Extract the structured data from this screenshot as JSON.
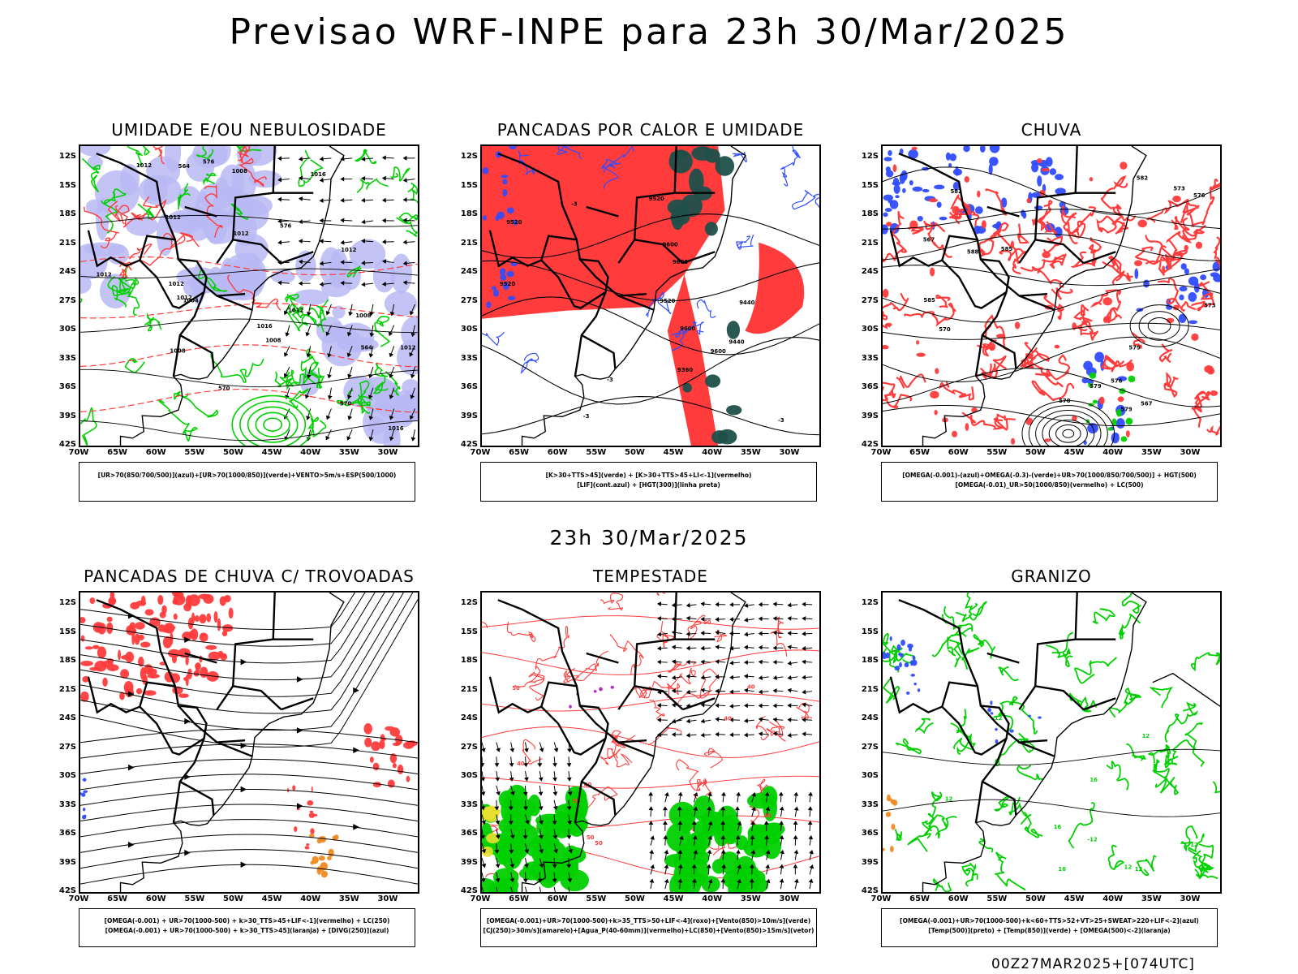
{
  "title": "Previsao WRF-INPE  para 23h 30/Mar/2025",
  "middle_title": "23h 30/Mar/2025",
  "footer": "00Z27MAR2025+[074UTC]",
  "lat_ticks": [
    "12S",
    "15S",
    "18S",
    "21S",
    "24S",
    "27S",
    "30S",
    "33S",
    "36S",
    "39S",
    "42S"
  ],
  "lon_ticks": [
    "70W",
    "65W",
    "60W",
    "55W",
    "50W",
    "45W",
    "40W",
    "35W",
    "30W"
  ],
  "colors": {
    "red": "#ff3b3b",
    "green": "#00d000",
    "blue": "#2f4cff",
    "lavender": "#b8b8f4",
    "darkteal": "#1f4f4a",
    "orange": "#f08a20",
    "yellow": "#e8e030",
    "purple": "#b020c0",
    "black": "#000000"
  },
  "panels": [
    {
      "id": "p1",
      "title": "UMIDADE E/OU NEBULOSIDADE",
      "legend": [
        "[UR>70(850/700/500)](azul)+[UR>70(1000/850)](verde)+VENTO>5m/s+ESP(500/1000)"
      ],
      "contour_labels": [
        "1012",
        "1012",
        "1012",
        "1016",
        "1012",
        "1008",
        "1004",
        "1016",
        "1012",
        "1008",
        "1012",
        "1012",
        "1012",
        "1016",
        "1008",
        "1012",
        "1008",
        "570",
        "576",
        "576",
        "570",
        "564",
        "564"
      ]
    },
    {
      "id": "p2",
      "title": "PANCADAS POR CALOR E UMIDADE",
      "legend": [
        "[K>30+TTS>45](verde) + [K>30+TTS>45+LI<-1](vermelho)",
        "[LIF](cont.azul) + [HGT(300)](linha preta)"
      ],
      "contour_labels": [
        "9600",
        "9600",
        "9520",
        "9520",
        "9600",
        "9600",
        "9520",
        "9520",
        "9440",
        "9440",
        "9360",
        "-3",
        "-3",
        "-3",
        "-3"
      ]
    },
    {
      "id": "p3",
      "title": "CHUVA",
      "legend": [
        "[OMEGA(-0.001)-(azul)+OMEGA(-0.3)-(verde)+UR>70(1000/850/700/500)] + HGT(500)",
        "[OMEGA(-0.01)_UR>50(1000/850)(vermelho) + LC(500)"
      ],
      "contour_labels": [
        "588",
        "585",
        "582",
        "579",
        "576",
        "573",
        "570",
        "567",
        "579",
        "576",
        "573",
        "570",
        "567",
        "582",
        "585",
        "579"
      ]
    },
    {
      "id": "p4",
      "title": "PANCADAS DE CHUVA C/ TROVOADAS",
      "legend": [
        "[OMEGA(-0.001) + UR>70(1000-500) + k>30_TTS>45+LIF<-1](vermelho) + LC(250)",
        "[OMEGA(-0.001) + UR>70(1000-500) + k>30_TTS>45](laranja) + [DIVG(250)](azul)"
      ],
      "contour_labels": []
    },
    {
      "id": "p5",
      "title": "TEMPESTADE",
      "legend": [
        "[OMEGA(-0.001)+UR>70(1000-500)+k>35_TTS>50+LIF<-4](roxo)+[Vento(850)>10m/s](verde)",
        "[CJ(250)>30m/s](amarelo)+[Agua_P(40-60mm)](vermelho)+LC(850)+[Vento(850)>15m/s](vetor)"
      ],
      "contour_labels": [
        "50",
        "50",
        "50",
        "40",
        "40",
        "40",
        "40",
        "50",
        "50",
        "40"
      ]
    },
    {
      "id": "p6",
      "title": "GRANIZO",
      "legend": [
        "[OMEGA(-0.001)+UR>70(1000-500)+k<60+TTS>52+VT>25+SWEAT>220+LIF<-2](azul)",
        "[Temp(500)](preto) + [Temp(850)](verde) + [OMEGA(500)<-2](laranja)"
      ],
      "contour_labels": [
        "-12",
        "-12",
        "-12",
        "12",
        "12",
        "16",
        "16",
        "16",
        "12",
        "12"
      ]
    }
  ]
}
